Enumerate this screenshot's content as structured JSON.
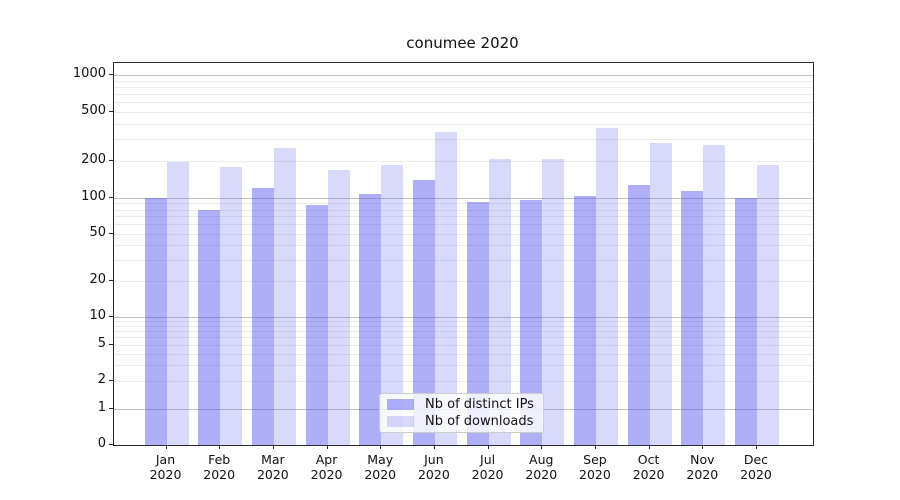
{
  "title": "conumee 2020",
  "chart_data": {
    "type": "bar",
    "title": "conumee 2020",
    "categories": [
      "Jan",
      "Feb",
      "Mar",
      "Apr",
      "May",
      "Jun",
      "Jul",
      "Aug",
      "Sep",
      "Oct",
      "Nov",
      "Dec"
    ],
    "year": "2020",
    "series": [
      {
        "name": "Nb of distinct IPs",
        "color": "rgba(64,64,238,0.42)",
        "values": [
          100,
          80,
          121,
          88,
          107,
          141,
          93,
          97,
          103,
          127,
          113,
          100
        ]
      },
      {
        "name": "Nb of downloads",
        "color": "rgba(64,64,238,0.20)",
        "values": [
          195,
          178,
          253,
          170,
          187,
          341,
          206,
          208,
          374,
          279,
          270,
          186
        ]
      }
    ],
    "yscale": "symlog",
    "yticks": [
      0,
      1,
      2,
      5,
      10,
      20,
      50,
      100,
      200,
      500,
      1000
    ],
    "ylim": [
      0,
      1250
    ],
    "grid": true,
    "legend_position": "lower center"
  },
  "colors": {
    "grid_major": "#c3c3c3",
    "grid_minor": "#ebebeb",
    "spine": "#2a2a2a",
    "background": "#ffffff"
  }
}
